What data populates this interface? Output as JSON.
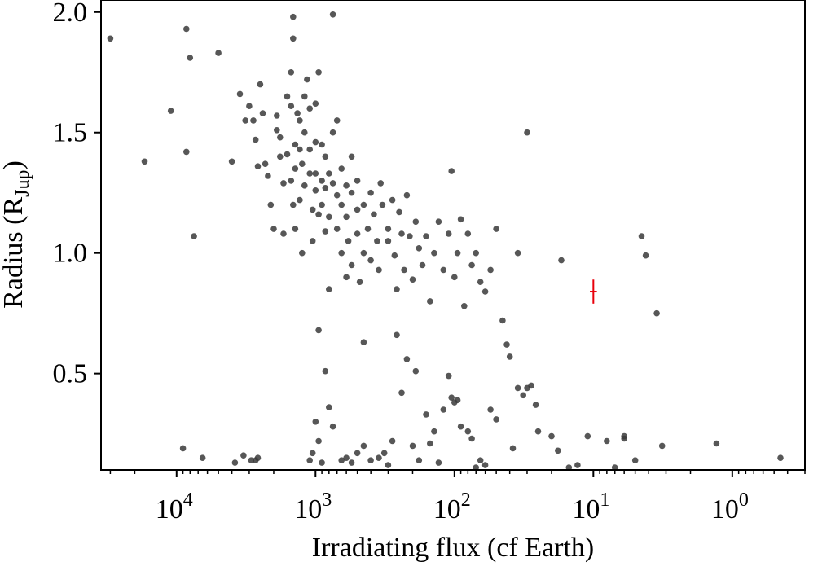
{
  "chart_data": {
    "type": "scatter",
    "x_scale": "log",
    "x_reversed": true,
    "xlim": [
      0.3,
      35000
    ],
    "ylim": [
      0.1,
      2.05
    ],
    "xlabel": "Irradiating flux (cf Earth)",
    "ylabel": "Radius (R",
    "ylabel_sub": "Jup",
    "ylabel_close": ")",
    "x_ticks": [
      {
        "value": 10000,
        "base": "10",
        "exp": "4"
      },
      {
        "value": 1000,
        "base": "10",
        "exp": "3"
      },
      {
        "value": 100,
        "base": "10",
        "exp": "2"
      },
      {
        "value": 10,
        "base": "10",
        "exp": "1"
      },
      {
        "value": 1,
        "base": "10",
        "exp": "0"
      }
    ],
    "y_ticks": [
      {
        "value": 0.5,
        "label": "0.5"
      },
      {
        "value": 1.0,
        "label": "1.0"
      },
      {
        "value": 1.5,
        "label": "1.5"
      },
      {
        "value": 2.0,
        "label": "2.0"
      }
    ],
    "grid": false,
    "marker_color": "#3a3a3a",
    "highlight_color": "#e8000b",
    "highlight": {
      "x": 10.0,
      "y": 0.84,
      "y_err": 0.05,
      "x_err_factor": 1.06
    },
    "series": [
      {
        "points": [
          [
            30000,
            1.89
          ],
          [
            11000,
            1.59
          ],
          [
            17000,
            1.38
          ],
          [
            8500,
            1.93
          ],
          [
            8000,
            1.81
          ],
          [
            8500,
            1.42
          ],
          [
            7500,
            1.07
          ],
          [
            5000,
            1.83
          ],
          [
            6500,
            0.15
          ],
          [
            4000,
            1.38
          ],
          [
            3500,
            1.66
          ],
          [
            3200,
            1.55
          ],
          [
            3000,
            1.61
          ],
          [
            2800,
            1.55
          ],
          [
            2700,
            1.47
          ],
          [
            2600,
            1.36
          ],
          [
            2500,
            1.7
          ],
          [
            2400,
            1.58
          ],
          [
            2300,
            1.37
          ],
          [
            2200,
            1.32
          ],
          [
            2100,
            1.2
          ],
          [
            2000,
            1.1
          ],
          [
            1900,
            1.57
          ],
          [
            1900,
            1.51
          ],
          [
            1800,
            1.4
          ],
          [
            1800,
            1.48
          ],
          [
            1700,
            1.29
          ],
          [
            1700,
            1.08
          ],
          [
            1600,
            1.65
          ],
          [
            1600,
            1.41
          ],
          [
            1500,
            1.75
          ],
          [
            1500,
            1.61
          ],
          [
            1500,
            1.3
          ],
          [
            1450,
            1.98
          ],
          [
            1450,
            1.89
          ],
          [
            1450,
            1.2
          ],
          [
            1400,
            1.45
          ],
          [
            1400,
            1.35
          ],
          [
            1400,
            1.1
          ],
          [
            1350,
            1.58
          ],
          [
            1300,
            1.55
          ],
          [
            1300,
            1.43
          ],
          [
            1300,
            1.22
          ],
          [
            1250,
            1.37
          ],
          [
            1250,
            1.0
          ],
          [
            1200,
            1.65
          ],
          [
            1200,
            1.5
          ],
          [
            1200,
            1.28
          ],
          [
            1150,
            1.72
          ],
          [
            1100,
            1.6
          ],
          [
            1100,
            1.43
          ],
          [
            1100,
            1.33
          ],
          [
            1050,
            1.18
          ],
          [
            1050,
            1.05
          ],
          [
            1000,
            1.62
          ],
          [
            1000,
            1.46
          ],
          [
            1000,
            1.33
          ],
          [
            1000,
            1.26
          ],
          [
            950,
            1.75
          ],
          [
            950,
            1.16
          ],
          [
            950,
            0.68
          ],
          [
            900,
            1.45
          ],
          [
            900,
            1.3
          ],
          [
            900,
            1.2
          ],
          [
            850,
            1.4
          ],
          [
            850,
            1.27
          ],
          [
            850,
            1.09
          ],
          [
            800,
            1.33
          ],
          [
            800,
            1.15
          ],
          [
            800,
            0.85
          ],
          [
            750,
            1.99
          ],
          [
            750,
            1.5
          ],
          [
            750,
            1.29
          ],
          [
            700,
            1.55
          ],
          [
            700,
            1.24
          ],
          [
            700,
            1.1
          ],
          [
            650,
            1.35
          ],
          [
            650,
            1.2
          ],
          [
            650,
            1.0
          ],
          [
            600,
            1.28
          ],
          [
            600,
            1.15
          ],
          [
            600,
            0.9
          ],
          [
            580,
            1.05
          ],
          [
            550,
            1.4
          ],
          [
            550,
            1.25
          ],
          [
            550,
            0.95
          ],
          [
            500,
            1.3
          ],
          [
            500,
            1.18
          ],
          [
            500,
            1.08
          ],
          [
            480,
            0.88
          ],
          [
            450,
            1.2
          ],
          [
            450,
            1.0
          ],
          [
            450,
            0.63
          ],
          [
            420,
            1.1
          ],
          [
            400,
            1.25
          ],
          [
            400,
            0.97
          ],
          [
            380,
            1.16
          ],
          [
            360,
            1.05
          ],
          [
            350,
            0.93
          ],
          [
            340,
            1.29
          ],
          [
            330,
            1.2
          ],
          [
            300,
            1.1
          ],
          [
            300,
            1.05
          ],
          [
            280,
            1.22
          ],
          [
            270,
            0.99
          ],
          [
            260,
            0.85
          ],
          [
            250,
            1.17
          ],
          [
            240,
            1.08
          ],
          [
            230,
            0.93
          ],
          [
            220,
            1.24
          ],
          [
            210,
            1.07
          ],
          [
            200,
            0.89
          ],
          [
            190,
            1.13
          ],
          [
            180,
            1.02
          ],
          [
            170,
            0.95
          ],
          [
            160,
            1.07
          ],
          [
            150,
            0.8
          ],
          [
            140,
            1.0
          ],
          [
            130,
            1.13
          ],
          [
            120,
            0.93
          ],
          [
            110,
            1.08
          ],
          [
            105,
            1.34
          ],
          [
            100,
            0.9
          ],
          [
            95,
            1.0
          ],
          [
            90,
            1.14
          ],
          [
            85,
            0.78
          ],
          [
            80,
            1.08
          ],
          [
            75,
            0.95
          ],
          [
            70,
            1.0
          ],
          [
            65,
            0.88
          ],
          [
            60,
            0.84
          ],
          [
            55,
            0.93
          ],
          [
            50,
            1.1
          ],
          [
            35,
            1.0
          ],
          [
            30,
            1.5
          ],
          [
            17,
            0.97
          ],
          [
            4.5,
            1.07
          ],
          [
            4.2,
            0.99
          ],
          [
            3.5,
            0.75
          ],
          [
            1100,
            0.14
          ],
          [
            1050,
            0.17
          ],
          [
            1000,
            0.3
          ],
          [
            950,
            0.22
          ],
          [
            900,
            0.13
          ],
          [
            850,
            0.51
          ],
          [
            800,
            0.36
          ],
          [
            750,
            0.28
          ],
          [
            650,
            0.14
          ],
          [
            600,
            0.15
          ],
          [
            550,
            0.13
          ],
          [
            500,
            0.17
          ],
          [
            450,
            0.2
          ],
          [
            400,
            0.14
          ],
          [
            350,
            0.15
          ],
          [
            320,
            0.17
          ],
          [
            300,
            0.12
          ],
          [
            280,
            0.22
          ],
          [
            260,
            0.66
          ],
          [
            240,
            0.42
          ],
          [
            220,
            0.56
          ],
          [
            200,
            0.2
          ],
          [
            190,
            0.51
          ],
          [
            180,
            0.14
          ],
          [
            160,
            0.33
          ],
          [
            150,
            0.21
          ],
          [
            140,
            0.26
          ],
          [
            130,
            0.13
          ],
          [
            120,
            0.35
          ],
          [
            110,
            0.49
          ],
          [
            105,
            0.4
          ],
          [
            100,
            0.38
          ],
          [
            95,
            0.39
          ],
          [
            90,
            0.28
          ],
          [
            80,
            0.26
          ],
          [
            75,
            0.23
          ],
          [
            70,
            0.11
          ],
          [
            65,
            0.14
          ],
          [
            60,
            0.12
          ],
          [
            55,
            0.35
          ],
          [
            50,
            0.31
          ],
          [
            45,
            0.72
          ],
          [
            42,
            0.62
          ],
          [
            40,
            0.57
          ],
          [
            38,
            0.19
          ],
          [
            35,
            0.44
          ],
          [
            32,
            0.41
          ],
          [
            30,
            0.44
          ],
          [
            28,
            0.45
          ],
          [
            26,
            0.37
          ],
          [
            25,
            0.26
          ],
          [
            20,
            0.24
          ],
          [
            18,
            0.18
          ],
          [
            15,
            0.11
          ],
          [
            13,
            0.12
          ],
          [
            11,
            0.24
          ],
          [
            8,
            0.22
          ],
          [
            7,
            0.11
          ],
          [
            6,
            0.24
          ],
          [
            6,
            0.23
          ],
          [
            5,
            0.14
          ],
          [
            3.2,
            0.2
          ],
          [
            1.3,
            0.21
          ],
          [
            0.45,
            0.15
          ],
          [
            9000,
            0.19
          ],
          [
            3800,
            0.13
          ],
          [
            3300,
            0.16
          ],
          [
            2900,
            0.14
          ],
          [
            2600,
            0.15
          ],
          [
            2700,
            0.14
          ]
        ]
      }
    ]
  }
}
